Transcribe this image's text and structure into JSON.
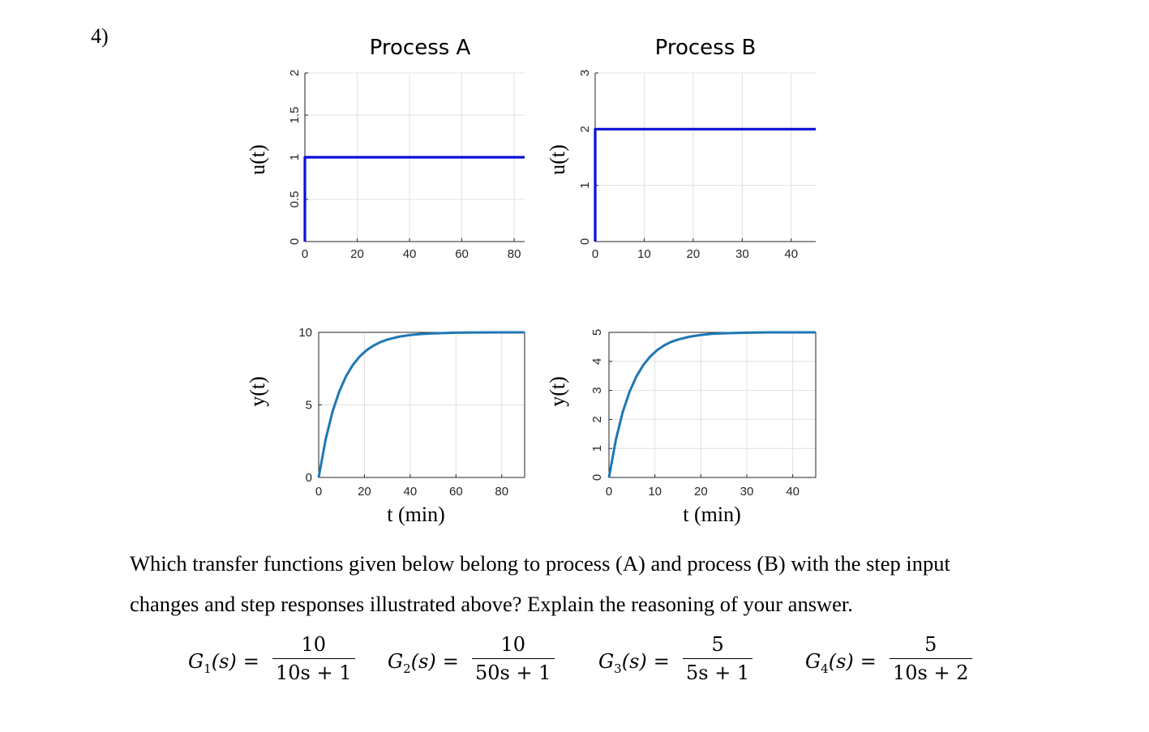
{
  "question": {
    "number": "4)",
    "line1": "Which transfer functions given below belong to process (A) and process (B) with the step input",
    "line2": "changes and step responses illustrated above? Explain the reasoning of your answer."
  },
  "titles": {
    "a": "Process A",
    "b": "Process B"
  },
  "axis_labels": {
    "u": "u(t)",
    "y": "y(t)",
    "t": "t (min)"
  },
  "colors": {
    "input_line": "#0a10d6",
    "output_line": "#1f77b4",
    "grid": "#e0e0e0",
    "axis": "#262626"
  },
  "chart_data": [
    {
      "type": "line",
      "title": "Process A",
      "xlabel": "",
      "ylabel": "u(t)",
      "xlim": [
        0,
        84
      ],
      "ylim": [
        0,
        2
      ],
      "xticks": [
        0,
        20,
        40,
        60,
        80
      ],
      "xtick_labels": [
        "0",
        "20",
        "40",
        "60",
        "80"
      ],
      "yticks": [
        0,
        0.5,
        1,
        1.5,
        2
      ],
      "ytick_labels": [
        "0",
        "0.5",
        "1",
        "1.5",
        "2"
      ],
      "grid": true,
      "box": false,
      "series": [
        {
          "x": [
            0,
            0,
            84
          ],
          "y": [
            0,
            1,
            1
          ]
        }
      ]
    },
    {
      "type": "line",
      "title": "Process B",
      "xlabel": "",
      "ylabel": "u(t)",
      "xlim": [
        0,
        45
      ],
      "ylim": [
        0,
        3
      ],
      "xticks": [
        0,
        10,
        20,
        30,
        40
      ],
      "xtick_labels": [
        "0",
        "10",
        "20",
        "30",
        "40"
      ],
      "yticks": [
        0,
        1,
        2,
        3
      ],
      "ytick_labels": [
        "0",
        "1",
        "2",
        "3"
      ],
      "grid": true,
      "box": false,
      "series": [
        {
          "x": [
            0,
            0,
            45
          ],
          "y": [
            0,
            2,
            2
          ]
        }
      ]
    },
    {
      "type": "line",
      "title": "",
      "xlabel": "t (min)",
      "ylabel": "y(t)",
      "xlim": [
        0,
        90
      ],
      "ylim": [
        0,
        10
      ],
      "xticks": [
        0,
        20,
        40,
        60,
        80
      ],
      "xtick_labels": [
        "0",
        "20",
        "40",
        "60",
        "80"
      ],
      "yticks": [
        0,
        5,
        10
      ],
      "ytick_labels": [
        "0",
        "5",
        "10"
      ],
      "grid": true,
      "box": true,
      "series": [
        {
          "x": [
            0,
            3,
            6,
            9,
            12,
            15,
            18,
            21,
            24,
            27,
            30,
            35,
            40,
            45,
            50,
            60,
            70,
            80,
            90
          ],
          "y": [
            0,
            2.59,
            4.51,
            5.93,
            6.99,
            7.77,
            8.35,
            8.78,
            9.09,
            9.33,
            9.5,
            9.7,
            9.82,
            9.89,
            9.93,
            9.98,
            9.99,
            10.0,
            10.0
          ]
        }
      ]
    },
    {
      "type": "line",
      "title": "",
      "xlabel": "t (min)",
      "ylabel": "y(t)",
      "xlim": [
        0,
        45
      ],
      "ylim": [
        0,
        5
      ],
      "xticks": [
        0,
        10,
        20,
        30,
        40
      ],
      "xtick_labels": [
        "0",
        "10",
        "20",
        "30",
        "40"
      ],
      "yticks": [
        0,
        1,
        2,
        3,
        4,
        5
      ],
      "ytick_labels": [
        "0",
        "1",
        "2",
        "3",
        "4",
        "5"
      ],
      "grid": true,
      "box": true,
      "series": [
        {
          "x": [
            0,
            1.5,
            3,
            4.5,
            6,
            7.5,
            9,
            10.5,
            12,
            13.5,
            15,
            17.5,
            20,
            22.5,
            25,
            30,
            35,
            40,
            45
          ],
          "y": [
            0,
            1.3,
            2.26,
            2.96,
            3.49,
            3.88,
            4.17,
            4.39,
            4.55,
            4.67,
            4.75,
            4.85,
            4.91,
            4.95,
            4.97,
            4.99,
            5.0,
            5.0,
            5.0
          ]
        }
      ]
    }
  ],
  "transfer_functions": [
    {
      "symbol": "G",
      "index": "1",
      "arg": "(s)",
      "eq": "=",
      "numerator": "10",
      "denominator": "10s + 1"
    },
    {
      "symbol": "G",
      "index": "2",
      "arg": "(s)",
      "eq": "=",
      "numerator": "10",
      "denominator": "50s + 1"
    },
    {
      "symbol": "G",
      "index": "3",
      "arg": "(s)",
      "eq": "=",
      "numerator": "5",
      "denominator": "5s + 1"
    },
    {
      "symbol": "G",
      "index": "4",
      "arg": "(s)",
      "eq": "=",
      "numerator": "5",
      "denominator": "10s + 2"
    }
  ]
}
